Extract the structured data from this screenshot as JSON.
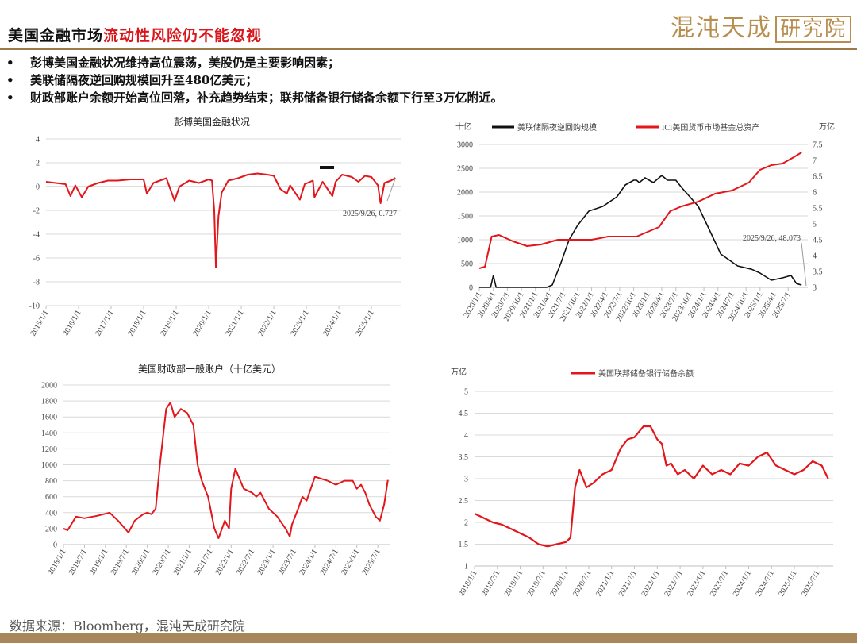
{
  "header": {
    "title_black": "美国金融市场",
    "title_red": "流动性风险仍不能忽视",
    "logo_main": "混沌天成",
    "logo_box": "研究院",
    "colors": {
      "red": "#d8161b",
      "brown": "#9c7a46",
      "gold": "#b88e4e"
    }
  },
  "bullets": [
    "彭博美国金融状况维持高位震荡，美股仍是主要影响因素；",
    "美联储隔夜逆回购规模回升至480亿美元；",
    "财政部账户余额开始高位回落，补充趋势结束；联邦储备银行储备余额下行至3万亿附近。"
  ],
  "footer": {
    "source": "数据来源：Bloomberg，混沌天成研究院"
  },
  "chart_data": [
    {
      "type": "line",
      "title": "彭博美国金融状况",
      "annotation": "2025/9/26, 0.727",
      "ylim": [
        -10,
        4
      ],
      "yticks": [
        "4",
        "2",
        "0",
        "-2",
        "-4",
        "-6",
        "-8",
        "-10"
      ],
      "xticks": [
        "2015/1/1",
        "2016/1/1",
        "2017/1/1",
        "2018/1/1",
        "2019/1/1",
        "2020/1/1",
        "2021/1/1",
        "2022/1/1",
        "2023/1/1",
        "2024/1/1",
        "2025/1/1"
      ],
      "series": [
        {
          "color": "#e3161c",
          "x": [
            2015.0,
            2015.3,
            2015.6,
            2015.75,
            2015.9,
            2016.1,
            2016.3,
            2016.6,
            2016.9,
            2017.2,
            2017.6,
            2018.0,
            2018.1,
            2018.3,
            2018.7,
            2018.95,
            2019.1,
            2019.4,
            2019.7,
            2020.0,
            2020.1,
            2020.17,
            2020.22,
            2020.3,
            2020.4,
            2020.6,
            2020.9,
            2021.2,
            2021.5,
            2021.8,
            2022.0,
            2022.2,
            2022.4,
            2022.5,
            2022.7,
            2022.8,
            2022.95,
            2023.2,
            2023.25,
            2023.5,
            2023.8,
            2023.9,
            2024.1,
            2024.4,
            2024.6,
            2024.8,
            2025.0,
            2025.2,
            2025.28,
            2025.4,
            2025.6,
            2025.74
          ],
          "y": [
            0.4,
            0.3,
            0.2,
            -0.8,
            0.1,
            -0.9,
            0.0,
            0.3,
            0.5,
            0.5,
            0.6,
            0.6,
            -0.6,
            0.3,
            0.7,
            -1.2,
            0.0,
            0.5,
            0.3,
            0.6,
            0.5,
            -2.0,
            -6.8,
            -2.5,
            -0.5,
            0.5,
            0.7,
            1.0,
            1.1,
            1.0,
            0.9,
            -0.2,
            -0.6,
            0.1,
            -0.7,
            -1.1,
            0.2,
            0.5,
            -0.9,
            0.4,
            -0.8,
            0.4,
            1.0,
            0.8,
            0.4,
            0.9,
            0.8,
            0.1,
            -1.4,
            0.3,
            0.5,
            0.727
          ]
        }
      ]
    },
    {
      "type": "line",
      "title": "",
      "left_unit": "十亿",
      "right_unit": "万亿",
      "annotation": "2025/9/26, 48.073",
      "ylim_left": [
        0,
        3000
      ],
      "ylim_right": [
        3,
        7.5
      ],
      "yticks_left": [
        "3000",
        "2500",
        "2000",
        "1500",
        "1000",
        "500",
        "0"
      ],
      "yticks_right": [
        "7.5",
        "7",
        "6.5",
        "6",
        "5.5",
        "5",
        "4.5",
        "4",
        "3.5",
        "3"
      ],
      "xticks": [
        "2020/1/1",
        "2020/4/1",
        "2020/7/1",
        "2020/10/1",
        "2021/1/1",
        "2021/4/1",
        "2021/7/1",
        "2021/10/1",
        "2022/1/1",
        "2022/4/1",
        "2022/7/1",
        "2022/10/1",
        "2023/1/1",
        "2023/4/1",
        "2023/7/1",
        "2023/10/1",
        "2024/1/1",
        "2024/4/1",
        "2024/7/1",
        "2024/10/1",
        "2025/1/1",
        "2025/4/1",
        "2025/7/1"
      ],
      "series": [
        {
          "name": "美联储隔夜逆回购规模",
          "axis": "left",
          "color": "#111111",
          "x": [
            2020.0,
            2020.2,
            2020.25,
            2020.3,
            2021.0,
            2021.2,
            2021.3,
            2021.45,
            2021.6,
            2021.75,
            2021.95,
            2022.2,
            2022.45,
            2022.6,
            2022.75,
            2022.8,
            2022.85,
            2022.95,
            2023.1,
            2023.25,
            2023.35,
            2023.5,
            2023.6,
            2023.75,
            2023.9,
            2024.1,
            2024.3,
            2024.6,
            2024.85,
            2025.0,
            2025.2,
            2025.4,
            2025.55,
            2025.65,
            2025.74
          ],
          "y": [
            0,
            0,
            250,
            0,
            0,
            0,
            50,
            500,
            1000,
            1300,
            1600,
            1700,
            1900,
            2150,
            2250,
            2250,
            2200,
            2300,
            2200,
            2350,
            2250,
            2250,
            2100,
            1900,
            1700,
            1200,
            700,
            450,
            380,
            300,
            150,
            200,
            250,
            80,
            48
          ]
        },
        {
          "name": "ICI美国货币市场基金总资产",
          "axis": "right",
          "color": "#e3161c",
          "x": [
            2020.0,
            2020.1,
            2020.22,
            2020.35,
            2020.6,
            2020.85,
            2021.1,
            2021.4,
            2021.7,
            2022.0,
            2022.3,
            2022.6,
            2022.8,
            2023.0,
            2023.2,
            2023.4,
            2023.6,
            2023.9,
            2024.2,
            2024.5,
            2024.8,
            2025.0,
            2025.2,
            2025.4,
            2025.6,
            2025.74
          ],
          "y": [
            3.6,
            3.65,
            4.6,
            4.65,
            4.45,
            4.3,
            4.35,
            4.5,
            4.5,
            4.5,
            4.6,
            4.6,
            4.6,
            4.75,
            4.9,
            5.4,
            5.55,
            5.7,
            5.95,
            6.05,
            6.3,
            6.7,
            6.85,
            6.9,
            7.1,
            7.25
          ]
        }
      ]
    },
    {
      "type": "line",
      "title": "美国财政部一般账户（十亿美元）",
      "ylim": [
        0,
        2000
      ],
      "yticks": [
        "2000",
        "1800",
        "1600",
        "1400",
        "1200",
        "1000",
        "800",
        "600",
        "400",
        "200",
        "0"
      ],
      "xticks": [
        "2018/1/1",
        "2018/7/1",
        "2019/1/1",
        "2019/7/1",
        "2020/1/1",
        "2020/7/1",
        "2021/1/1",
        "2021/7/1",
        "2022/1/1",
        "2022/7/1",
        "2023/1/1",
        "2023/7/1",
        "2024/1/1",
        "2024/7/1",
        "2025/1/1",
        "2025/7/1"
      ],
      "series": [
        {
          "color": "#e3161c",
          "x": [
            2018.0,
            2018.1,
            2018.3,
            2018.5,
            2018.8,
            2019.1,
            2019.3,
            2019.55,
            2019.7,
            2019.9,
            2020.0,
            2020.1,
            2020.2,
            2020.3,
            2020.45,
            2020.55,
            2020.65,
            2020.8,
            2020.95,
            2021.1,
            2021.2,
            2021.3,
            2021.45,
            2021.6,
            2021.7,
            2021.85,
            2021.95,
            2022.0,
            2022.1,
            2022.3,
            2022.5,
            2022.6,
            2022.7,
            2022.9,
            2023.1,
            2023.3,
            2023.4,
            2023.45,
            2023.6,
            2023.7,
            2023.8,
            2024.0,
            2024.3,
            2024.5,
            2024.7,
            2024.9,
            2025.0,
            2025.1,
            2025.2,
            2025.3,
            2025.45,
            2025.55,
            2025.65,
            2025.74
          ],
          "y": [
            200,
            180,
            350,
            330,
            360,
            400,
            300,
            150,
            300,
            380,
            400,
            380,
            450,
            1000,
            1700,
            1780,
            1600,
            1700,
            1650,
            1500,
            1000,
            800,
            600,
            200,
            80,
            300,
            200,
            700,
            950,
            700,
            650,
            600,
            650,
            450,
            350,
            200,
            100,
            250,
            450,
            600,
            550,
            850,
            800,
            750,
            800,
            800,
            700,
            750,
            650,
            500,
            350,
            300,
            500,
            810
          ]
        }
      ]
    },
    {
      "type": "line",
      "title": "",
      "unit": "万亿",
      "ylim": [
        1,
        5
      ],
      "yticks": [
        "5",
        "4.5",
        "4",
        "3.5",
        "3",
        "2.5",
        "2",
        "1.5",
        "1"
      ],
      "xticks": [
        "2018/1/1",
        "2018/7/1",
        "2019/1/1",
        "2019/7/1",
        "2020/1/1",
        "2020/7/1",
        "2021/1/1",
        "2021/7/1",
        "2022/1/1",
        "2022/7/1",
        "2023/1/1",
        "2023/7/1",
        "2024/1/1",
        "2024/7/1",
        "2025/1/1",
        "2025/7/1"
      ],
      "series": [
        {
          "name": "美国联邦储备银行储备余额",
          "color": "#e3161c",
          "x": [
            2018.0,
            2018.2,
            2018.4,
            2018.6,
            2018.8,
            2019.0,
            2019.2,
            2019.4,
            2019.6,
            2019.8,
            2020.0,
            2020.1,
            2020.2,
            2020.3,
            2020.45,
            2020.6,
            2020.8,
            2021.0,
            2021.2,
            2021.35,
            2021.5,
            2021.7,
            2021.85,
            2022.0,
            2022.1,
            2022.2,
            2022.3,
            2022.45,
            2022.6,
            2022.8,
            2023.0,
            2023.2,
            2023.4,
            2023.6,
            2023.8,
            2024.0,
            2024.2,
            2024.4,
            2024.6,
            2024.8,
            2025.0,
            2025.2,
            2025.4,
            2025.6,
            2025.74
          ],
          "y": [
            2.2,
            2.1,
            2.0,
            1.95,
            1.85,
            1.75,
            1.65,
            1.5,
            1.45,
            1.5,
            1.55,
            1.65,
            2.8,
            3.2,
            2.8,
            2.9,
            3.1,
            3.2,
            3.7,
            3.9,
            3.95,
            4.2,
            4.2,
            3.9,
            3.8,
            3.3,
            3.35,
            3.1,
            3.2,
            3.0,
            3.3,
            3.1,
            3.2,
            3.1,
            3.35,
            3.3,
            3.5,
            3.6,
            3.3,
            3.2,
            3.1,
            3.2,
            3.4,
            3.3,
            3.0
          ]
        }
      ]
    }
  ]
}
